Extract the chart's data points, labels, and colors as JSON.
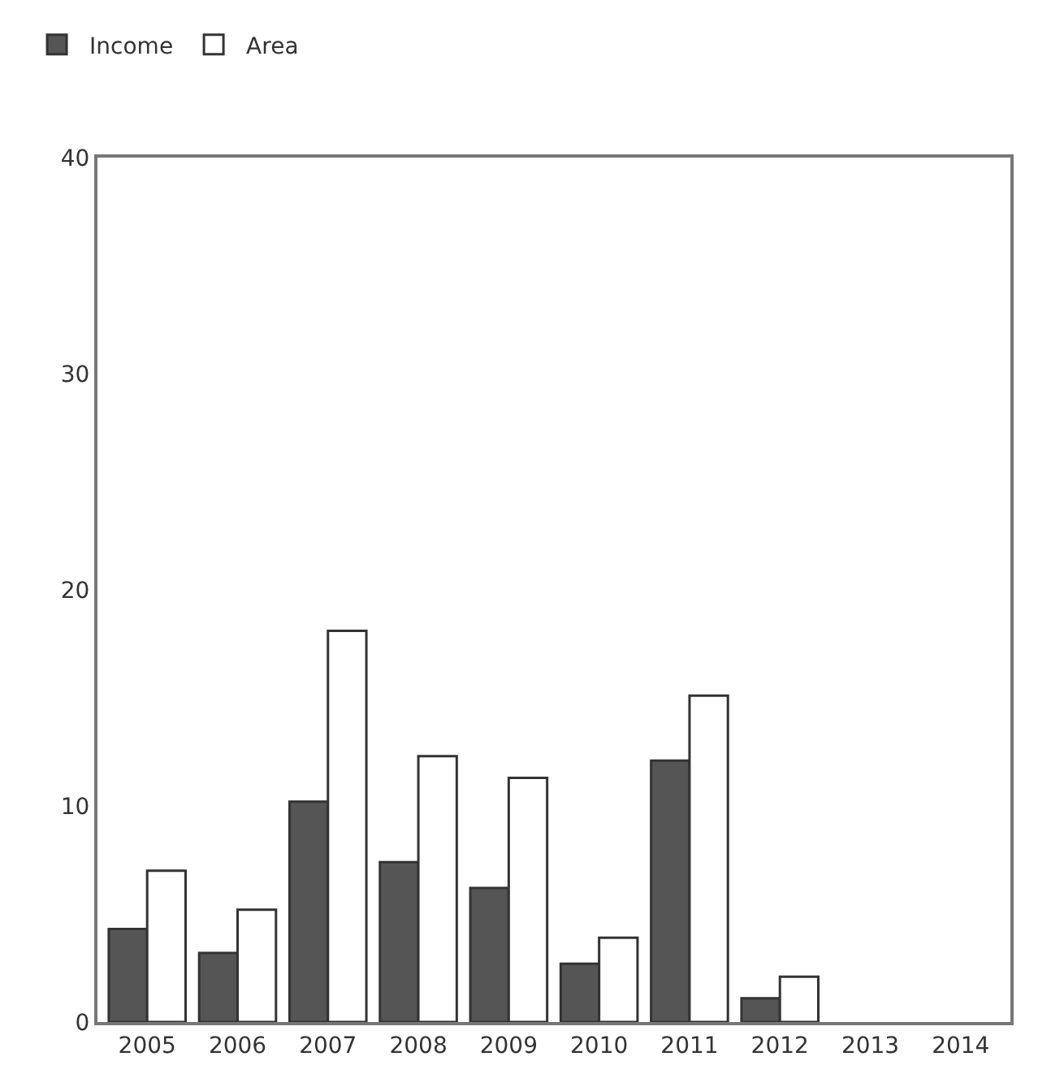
{
  "chart_data": {
    "type": "bar",
    "categories": [
      "2005",
      "2006",
      "2007",
      "2008",
      "2009",
      "2010",
      "2011",
      "2012",
      "2013",
      "2014"
    ],
    "series": [
      {
        "name": "Income",
        "color": "#555555",
        "values": [
          4.3,
          3.2,
          10.2,
          7.4,
          6.2,
          2.7,
          12.1,
          1.1,
          0,
          0
        ]
      },
      {
        "name": "Area",
        "color": "#ffffff",
        "values": [
          7.0,
          5.2,
          18.1,
          12.3,
          11.3,
          3.9,
          15.1,
          2.1,
          0,
          0
        ]
      }
    ],
    "ylim": [
      0,
      40
    ],
    "yticks": [
      0,
      10,
      20,
      30,
      40
    ],
    "legend": "top left"
  }
}
